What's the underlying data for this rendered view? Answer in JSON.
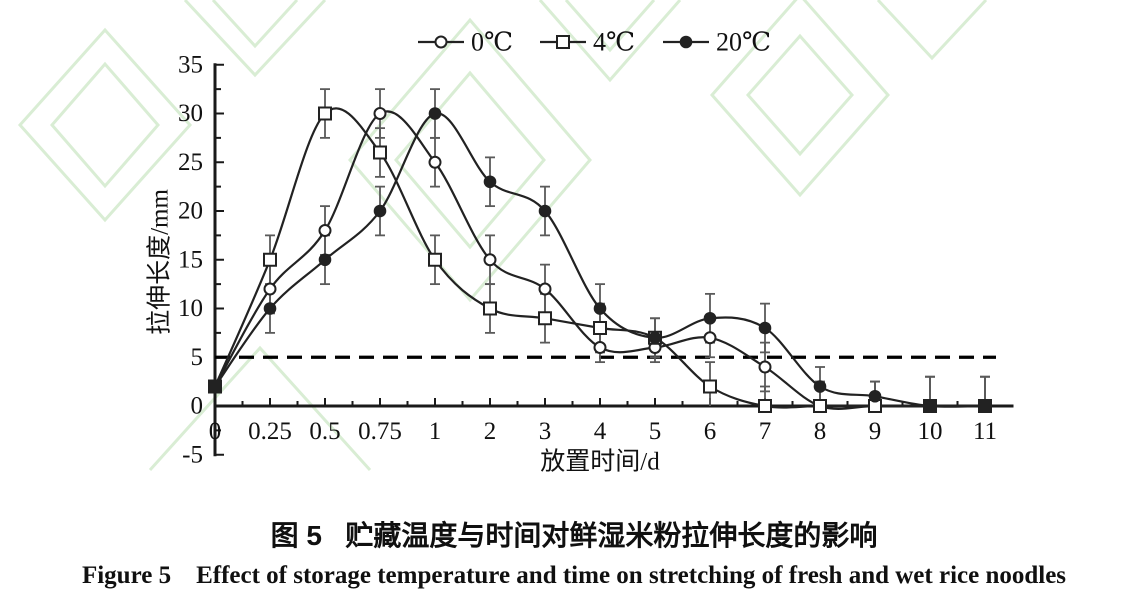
{
  "figure": {
    "caption_zh": "图 5   贮藏温度与时间对鲜湿米粉拉伸长度的影响",
    "caption_en": "Figure 5    Effect of storage temperature and time on stretching of fresh and wet rice noodles"
  },
  "colors": {
    "axis": "#1a1a1a",
    "line": "#222222",
    "error_bar": "#5a5a5a",
    "reference_line": "#000000",
    "watermark": "#d9edd4",
    "text": "#111111"
  },
  "chart_data": {
    "type": "line",
    "categories": [
      "0",
      "0.25",
      "0.5",
      "0.75",
      "1",
      "2",
      "3",
      "4",
      "5",
      "6",
      "7",
      "8",
      "9",
      "10",
      "11"
    ],
    "xlabel": "放置时间/d",
    "ylabel": "拉伸长度/mm",
    "ylim": [
      -5,
      35
    ],
    "y_ticks": [
      -5,
      0,
      5,
      10,
      15,
      20,
      25,
      30,
      35
    ],
    "y_minor_step": 2.5,
    "grid": false,
    "legend_position": "top-center",
    "reference_line": {
      "y": 5,
      "style": "dashed"
    },
    "series": [
      {
        "name": "0℃",
        "key": "0c",
        "marker": "open-circle",
        "values": [
          2,
          12,
          18,
          30,
          25,
          15,
          12,
          6,
          6,
          7,
          4,
          0,
          0,
          0,
          0
        ],
        "errors": [
          0,
          2.5,
          2.5,
          2.5,
          2.5,
          2.5,
          2.5,
          1.5,
          1.5,
          2,
          2.5,
          2.5,
          2.5,
          3,
          3
        ]
      },
      {
        "name": "4℃",
        "key": "4c",
        "marker": "open-square",
        "values": [
          2,
          15,
          30,
          26,
          15,
          10,
          9,
          8,
          7,
          2,
          0,
          0,
          0,
          0,
          0
        ],
        "errors": [
          0,
          2.5,
          2.5,
          2.5,
          2.5,
          2.5,
          2.5,
          2.5,
          2,
          2.5,
          2,
          2.5,
          2.5,
          3,
          3
        ]
      },
      {
        "name": "20℃",
        "key": "20c",
        "marker": "filled-circle",
        "values": [
          2,
          10,
          15,
          20,
          30,
          23,
          20,
          10,
          7,
          9,
          8,
          2,
          1,
          0,
          0
        ],
        "errors": [
          0,
          2.5,
          2.5,
          2.5,
          2.5,
          2.5,
          2.5,
          2.5,
          2,
          2.5,
          2.5,
          2,
          1.5,
          3,
          3
        ]
      }
    ]
  }
}
